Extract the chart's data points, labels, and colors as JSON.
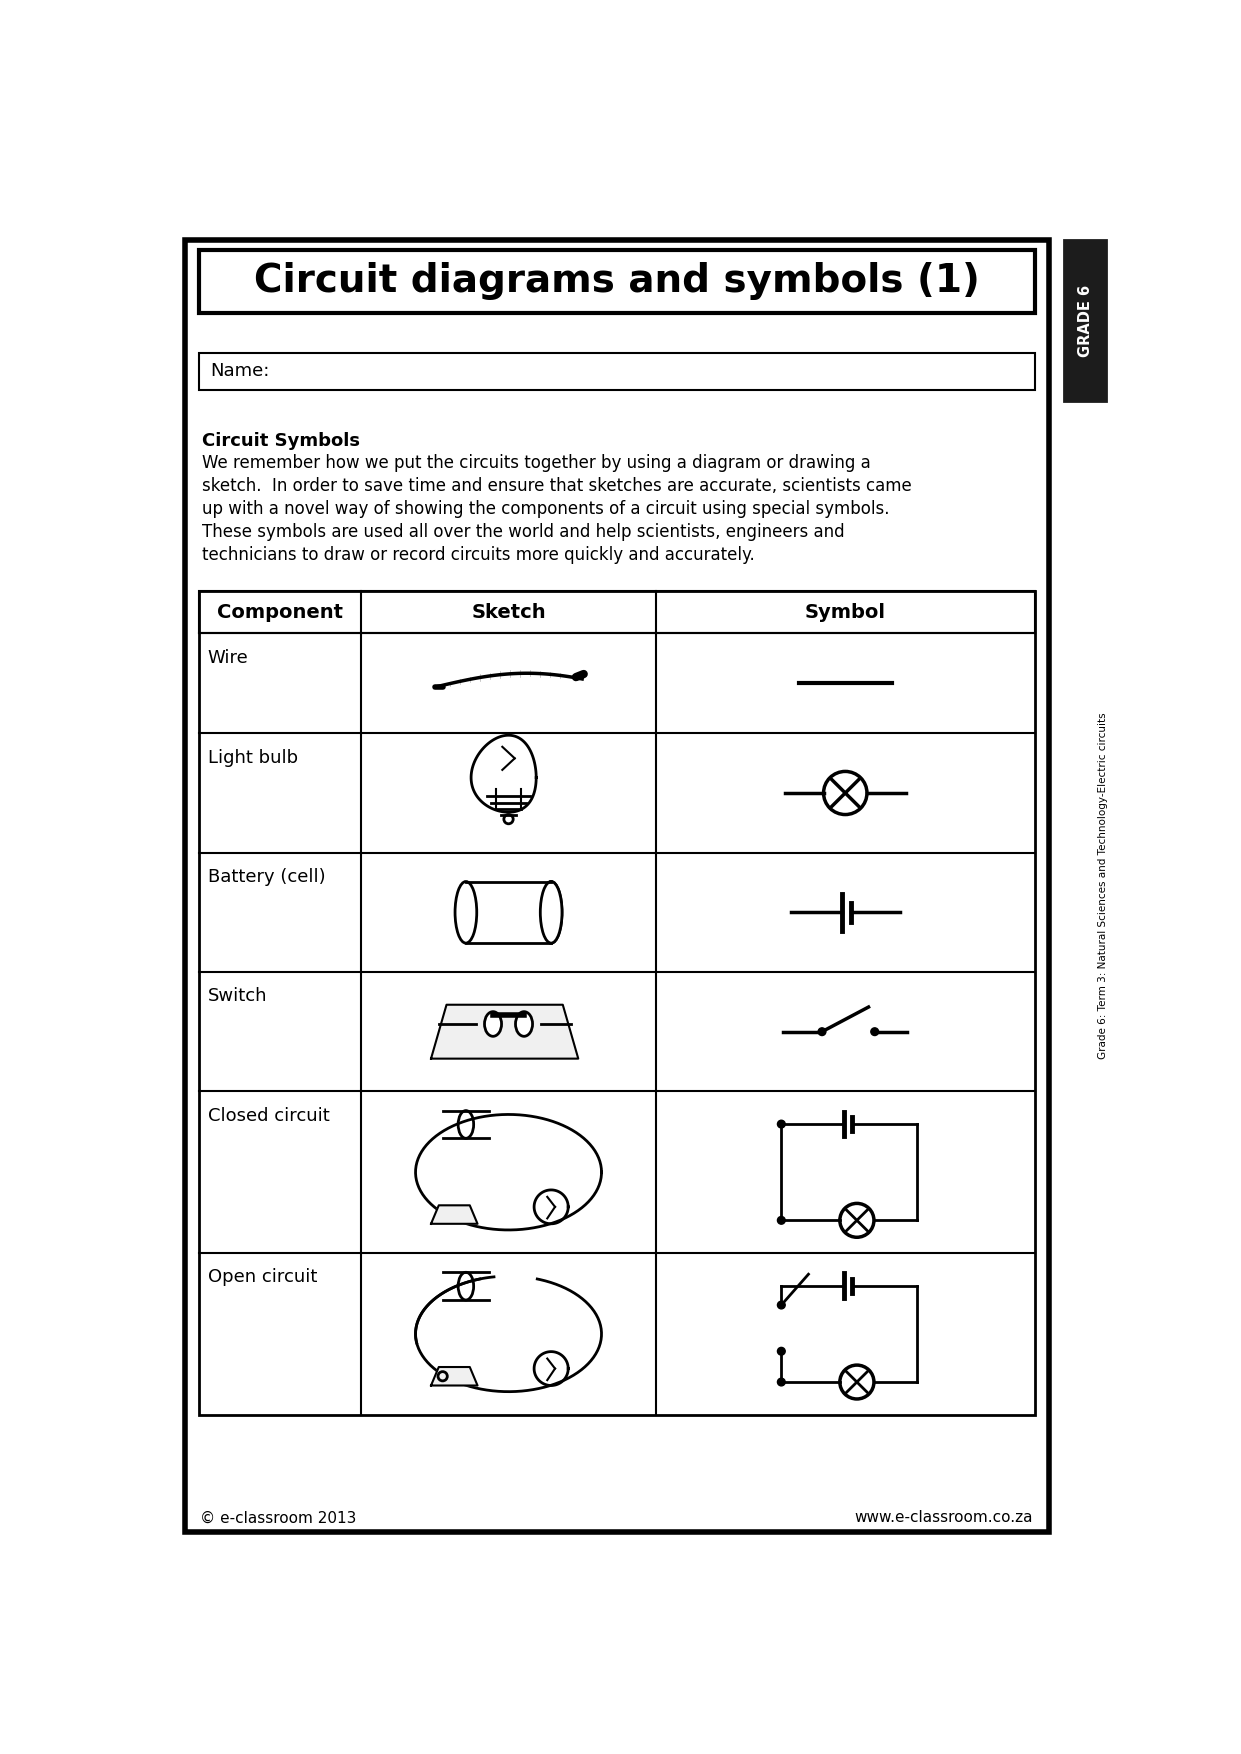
{
  "title": "Circuit diagrams and symbols (1)",
  "grade_label": "GRADE 6",
  "side_label": "Grade 6: Term 3: Natural Sciences and Technology-Electric circuits",
  "name_label": "Name:",
  "section_title": "Circuit Symbols",
  "body_lines": [
    "We remember how we put the circuits together by using a diagram or drawing a",
    "sketch.  In order to save time and ensure that sketches are accurate, scientists came",
    "up with a novel way of showing the components of a circuit using special symbols.",
    "These symbols are used all over the world and help scientists, engineers and",
    "technicians to draw or record circuits more quickly and accurately."
  ],
  "table_headers": [
    "Component",
    "Sketch",
    "Symbol"
  ],
  "rows": [
    "Wire",
    "Light bulb",
    "Battery (cell)",
    "Switch",
    "Closed circuit",
    "Open circuit"
  ],
  "footer_left": "© e-classroom 2013",
  "footer_right": "www.e-classroom.co.za",
  "bg_color": "#ffffff",
  "text_color": "#000000"
}
